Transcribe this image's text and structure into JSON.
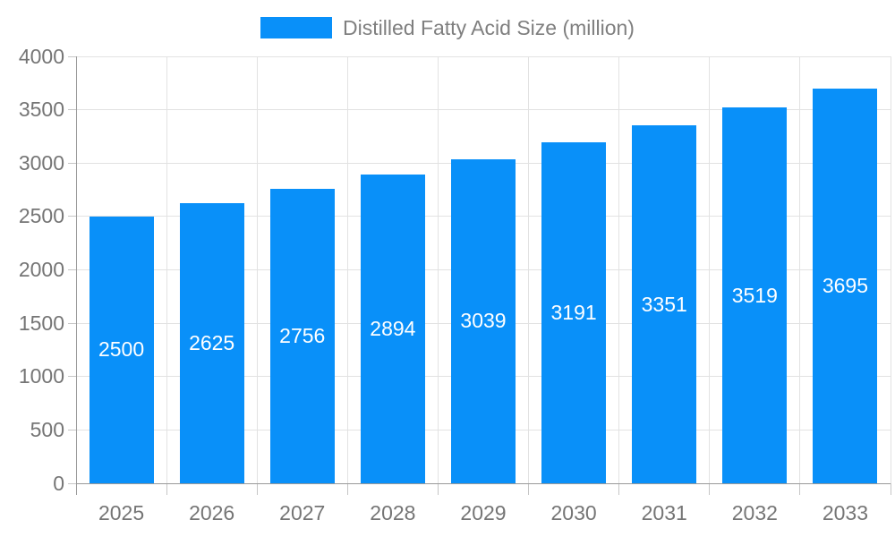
{
  "legend": {
    "label": "Distilled Fatty Acid Size (million)"
  },
  "chart_data": {
    "type": "bar",
    "title": "Distilled Fatty Acid Size (million)",
    "categories": [
      "2025",
      "2026",
      "2027",
      "2028",
      "2029",
      "2030",
      "2031",
      "2032",
      "2033"
    ],
    "values": [
      2500,
      2625,
      2756,
      2894,
      3039,
      3191,
      3351,
      3519,
      3695
    ],
    "bar_value_labels": [
      "2500",
      "2625",
      "2756",
      "2894",
      "3039",
      "3191",
      "3351",
      "3519",
      "3695"
    ],
    "xlabel": "",
    "ylabel": "",
    "ylim": [
      0,
      4000
    ],
    "yticks": [
      0,
      500,
      1000,
      1500,
      2000,
      2500,
      3000,
      3500,
      4000
    ],
    "grid": true,
    "legend_position": "top-center",
    "legend_entries": [
      "Distilled Fatty Acid Size (million)"
    ],
    "colors": {
      "bar": "#0990f9",
      "grid": "#e2e2e2",
      "tick": "#c6c6c6",
      "axis": "#999999",
      "axis_label_text": "#757575",
      "legend_text": "#7f7f7f",
      "bar_label_text": "#ffffff",
      "background": "#ffffff"
    }
  }
}
